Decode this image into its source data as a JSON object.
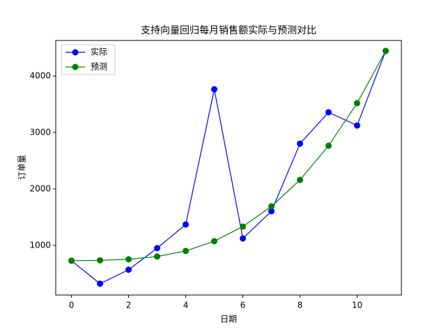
{
  "chart_data": {
    "type": "line",
    "title": "支持向量回归每月销售额实际与预测对比",
    "x_label": "日期",
    "y_label": "订单量",
    "x": [
      0,
      1,
      2,
      3,
      4,
      5,
      6,
      7,
      8,
      9,
      10,
      11
    ],
    "series": [
      {
        "name": "实际",
        "color": "#0000ff",
        "values": [
          728,
          321,
          568,
          951,
          1370,
          3765,
          1123,
          1605,
          2802,
          3358,
          3123,
          4444
        ]
      },
      {
        "name": "预测",
        "color": "#008000",
        "values": [
          728,
          735,
          753,
          802,
          901,
          1074,
          1333,
          1691,
          2160,
          2765,
          3519,
          4444
        ]
      }
    ],
    "xlim": [
      -0.55,
      11.55
    ],
    "xticks": [
      0,
      2,
      4,
      6,
      8,
      10
    ],
    "ylim": [
      120,
      4630
    ],
    "yticks": [
      1000,
      2000,
      3000,
      4000
    ],
    "legend": "upper left",
    "grid": false
  }
}
